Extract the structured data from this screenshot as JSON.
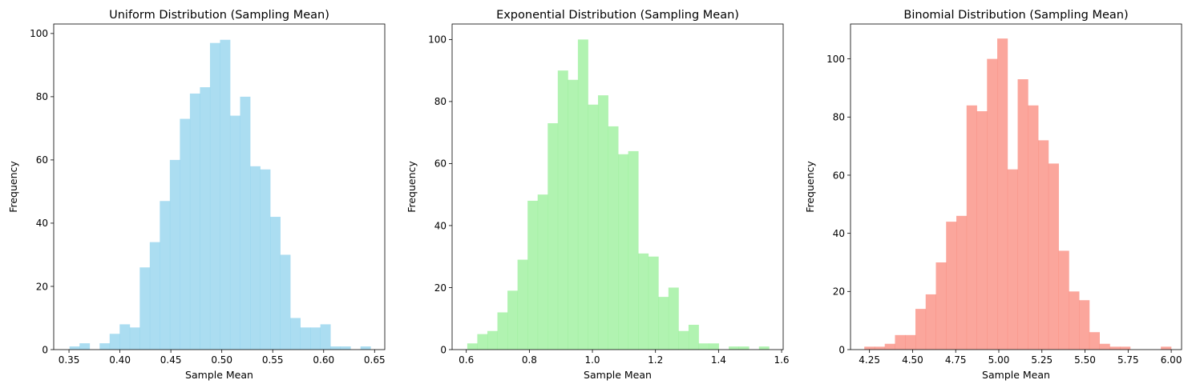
{
  "chart_data": [
    {
      "type": "histogram",
      "title": "Uniform Distribution (Sampling Mean)",
      "xlabel": "Sample Mean",
      "ylabel": "Frequency",
      "xlim": [
        0.335,
        0.66
      ],
      "ylim": [
        0,
        103
      ],
      "xticks": [
        0.35,
        0.4,
        0.45,
        0.5,
        0.55,
        0.6,
        0.65
      ],
      "xtick_labels": [
        "0.35",
        "0.40",
        "0.45",
        "0.50",
        "0.55",
        "0.60",
        "0.65"
      ],
      "yticks": [
        0,
        20,
        40,
        60,
        80,
        100
      ],
      "ytick_labels": [
        "0",
        "20",
        "40",
        "60",
        "80",
        "100"
      ],
      "color": "#87CEEB",
      "bin_start": 0.3505,
      "bin_width": 0.00985,
      "values": [
        1,
        2,
        0,
        2,
        5,
        8,
        7,
        26,
        34,
        47,
        60,
        73,
        81,
        83,
        97,
        98,
        74,
        80,
        58,
        57,
        42,
        30,
        10,
        7,
        7,
        8,
        1,
        1,
        0,
        1
      ]
    },
    {
      "type": "histogram",
      "title": "Exponential Distribution (Sampling Mean)",
      "xlabel": "Sample Mean",
      "ylabel": "Frequency",
      "xlim": [
        0.555,
        1.605
      ],
      "ylim": [
        0,
        105
      ],
      "xticks": [
        0.6,
        0.8,
        1.0,
        1.2,
        1.4,
        1.6
      ],
      "xtick_labels": [
        "0.6",
        "0.8",
        "1.0",
        "1.2",
        "1.4",
        "1.6"
      ],
      "yticks": [
        0,
        20,
        40,
        60,
        80,
        100
      ],
      "ytick_labels": [
        "0",
        "20",
        "40",
        "60",
        "80",
        "100"
      ],
      "color": "#90EE90",
      "bin_start": 0.603,
      "bin_width": 0.0319,
      "values": [
        2,
        5,
        6,
        12,
        19,
        29,
        48,
        50,
        73,
        90,
        87,
        100,
        79,
        82,
        72,
        63,
        64,
        31,
        30,
        17,
        20,
        6,
        8,
        2,
        2,
        0,
        1,
        1,
        0,
        1
      ]
    },
    {
      "type": "histogram",
      "title": "Binomial Distribution (Sampling Mean)",
      "xlabel": "Sample Mean",
      "ylabel": "Frequency",
      "xlim": [
        4.14,
        6.06
      ],
      "ylim": [
        0,
        112
      ],
      "xticks": [
        4.25,
        4.5,
        4.75,
        5.0,
        5.25,
        5.5,
        5.75,
        6.0
      ],
      "xtick_labels": [
        "4.25",
        "4.50",
        "4.75",
        "5.00",
        "5.25",
        "5.50",
        "5.75",
        "6.00"
      ],
      "yticks": [
        0,
        20,
        40,
        60,
        80,
        100
      ],
      "ytick_labels": [
        "0",
        "20",
        "40",
        "60",
        "80",
        "100"
      ],
      "color": "#FA8072",
      "bin_start": 4.22,
      "bin_width": 0.0593,
      "values": [
        1,
        1,
        2,
        5,
        5,
        14,
        19,
        30,
        44,
        46,
        84,
        82,
        100,
        107,
        62,
        93,
        84,
        72,
        64,
        34,
        20,
        17,
        6,
        2,
        1,
        1,
        0,
        0,
        0,
        1
      ]
    }
  ]
}
